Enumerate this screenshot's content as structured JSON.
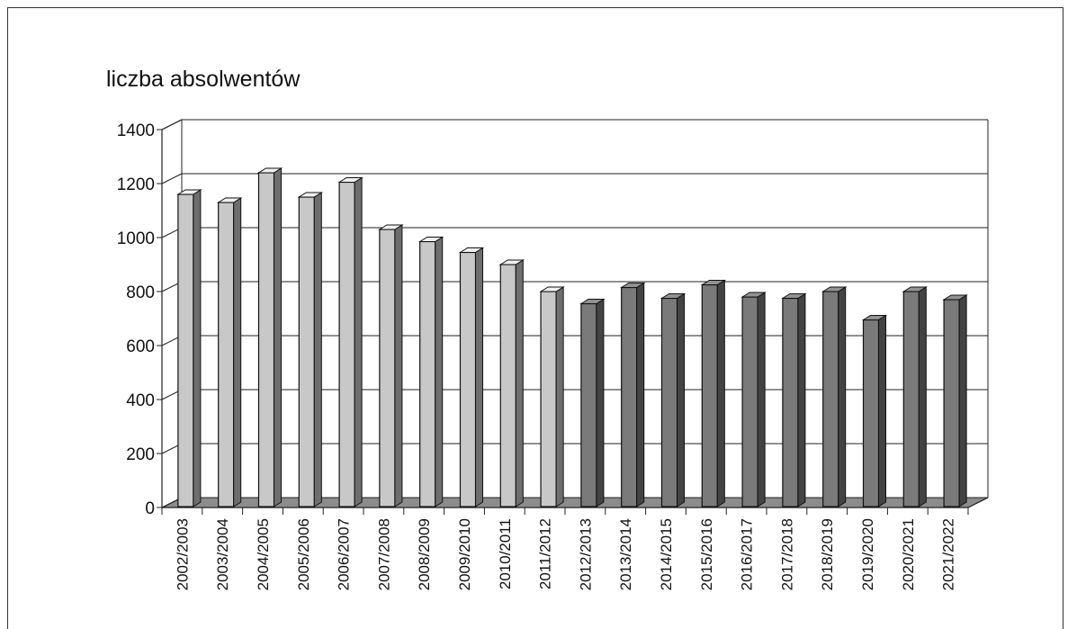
{
  "chart_data": {
    "type": "bar",
    "title": "liczba absolwentów",
    "xlabel": "",
    "ylabel": "",
    "ylim": [
      0,
      1400
    ],
    "yticks": [
      0,
      200,
      400,
      600,
      800,
      1000,
      1200,
      1400
    ],
    "grid": true,
    "categories": [
      "2002/2003",
      "2003/2004",
      "2004/2005",
      "2005/2006",
      "2006/2007",
      "2007/2008",
      "2008/2009",
      "2009/2010",
      "2010/2011",
      "2011/2012",
      "2012/2013",
      "2013/2014",
      "2014/2015",
      "2015/2016",
      "2016/2017",
      "2017/2018",
      "2018/2019",
      "2019/2020",
      "2020/2021",
      "2021/2022"
    ],
    "values": [
      1160,
      1130,
      1240,
      1150,
      1205,
      1030,
      985,
      945,
      900,
      800,
      755,
      815,
      775,
      825,
      780,
      775,
      800,
      695,
      800,
      770
    ],
    "bar_colors": [
      "#c8c8c8",
      "#c8c8c8",
      "#c8c8c8",
      "#c8c8c8",
      "#c8c8c8",
      "#c8c8c8",
      "#c8c8c8",
      "#c8c8c8",
      "#c8c8c8",
      "#c8c8c8",
      "#7a7a7a",
      "#7a7a7a",
      "#7a7a7a",
      "#7a7a7a",
      "#7a7a7a",
      "#7a7a7a",
      "#7a7a7a",
      "#7a7a7a",
      "#7a7a7a",
      "#7a7a7a"
    ]
  }
}
